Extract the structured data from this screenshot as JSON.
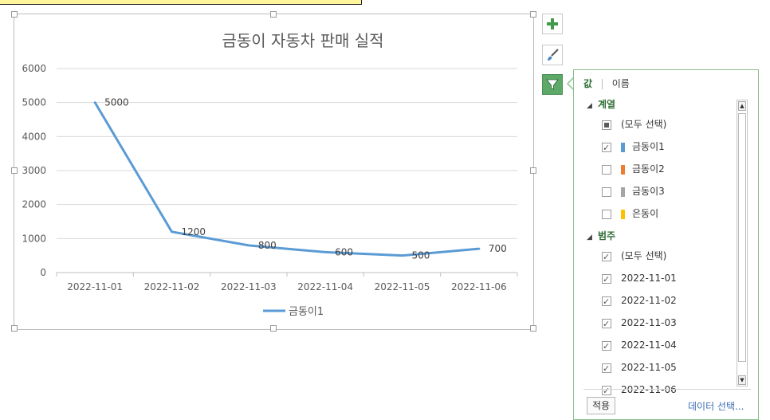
{
  "chart": {
    "title": "금동이 자동차 판매 실적",
    "legend_label": "금동이1",
    "line_color": "#5b9bd5"
  },
  "chart_data": {
    "type": "line",
    "title": "금동이 자동차 판매 실적",
    "categories": [
      "2022-11-01",
      "2022-11-02",
      "2022-11-03",
      "2022-11-04",
      "2022-11-05",
      "2022-11-06"
    ],
    "series": [
      {
        "name": "금동이1",
        "values": [
          5000,
          1200,
          800,
          600,
          500,
          700
        ]
      }
    ],
    "ylim": [
      0,
      6000
    ],
    "yticks": [
      0,
      1000,
      2000,
      3000,
      4000,
      5000,
      6000
    ],
    "grid": true,
    "legend_position": "bottom",
    "data_labels": true
  },
  "side_buttons": [
    {
      "name": "chart-elements",
      "icon": "plus-icon"
    },
    {
      "name": "chart-styles",
      "icon": "paintbrush-icon"
    },
    {
      "name": "chart-filters",
      "icon": "filter-icon"
    }
  ],
  "filter_panel": {
    "tab_values": "값",
    "tab_names": "이름",
    "series_group": "계열",
    "select_all": "(모두 선택)",
    "series": [
      {
        "label": "금동이1",
        "checked": true,
        "color": "#5b9bd5"
      },
      {
        "label": "금동이2",
        "checked": false,
        "color": "#ed7d31"
      },
      {
        "label": "금동이3",
        "checked": false,
        "color": "#a5a5a5"
      },
      {
        "label": "은동이",
        "checked": false,
        "color": "#ffc000"
      }
    ],
    "category_group": "범주",
    "categories": [
      "2022-11-01",
      "2022-11-02",
      "2022-11-03",
      "2022-11-04",
      "2022-11-05",
      "2022-11-06"
    ],
    "apply": "적용",
    "select_data": "데이터 선택..."
  }
}
